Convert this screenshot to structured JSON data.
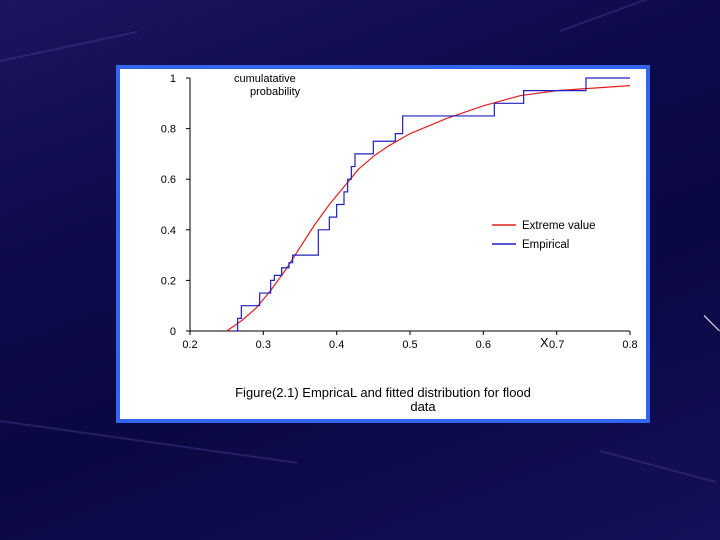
{
  "colors": {
    "extreme": "#e02020",
    "empirical": "#2020c0",
    "frame": "#3366ee"
  },
  "caption": {
    "line1": "Figure(2.1)     EmpricaL and fitted distribution for flood",
    "line2": "data"
  },
  "chart_data": {
    "type": "line",
    "ylabel": "cumulatative\nprobability",
    "xlabel": "X",
    "xlim": [
      0.2,
      0.8
    ],
    "ylim": [
      0,
      1
    ],
    "xticks": [
      "0.2",
      "0.3",
      "0.4",
      "0.5",
      "0.6",
      "0.7",
      "0.8"
    ],
    "yticks": [
      "0",
      "0.2",
      "0.4",
      "0.6",
      "0.8",
      "1"
    ],
    "legend_position": "right",
    "series": [
      {
        "name": "Extreme  value",
        "style": "line",
        "x": [
          0.25,
          0.27,
          0.29,
          0.31,
          0.33,
          0.35,
          0.37,
          0.39,
          0.41,
          0.43,
          0.45,
          0.47,
          0.5,
          0.55,
          0.6,
          0.65,
          0.7,
          0.75,
          0.8
        ],
        "y": [
          0.0,
          0.04,
          0.09,
          0.16,
          0.24,
          0.33,
          0.42,
          0.5,
          0.57,
          0.64,
          0.69,
          0.73,
          0.78,
          0.84,
          0.89,
          0.93,
          0.95,
          0.96,
          0.97
        ]
      },
      {
        "name": "Empirical",
        "style": "step",
        "x": [
          0.26,
          0.265,
          0.27,
          0.295,
          0.31,
          0.315,
          0.325,
          0.335,
          0.34,
          0.375,
          0.39,
          0.4,
          0.41,
          0.415,
          0.42,
          0.425,
          0.45,
          0.48,
          0.49,
          0.615,
          0.655,
          0.74,
          0.8
        ],
        "y": [
          0.0,
          0.05,
          0.1,
          0.15,
          0.2,
          0.22,
          0.25,
          0.27,
          0.3,
          0.4,
          0.45,
          0.5,
          0.55,
          0.6,
          0.65,
          0.7,
          0.75,
          0.78,
          0.85,
          0.9,
          0.95,
          1.0,
          1.0
        ]
      }
    ]
  }
}
